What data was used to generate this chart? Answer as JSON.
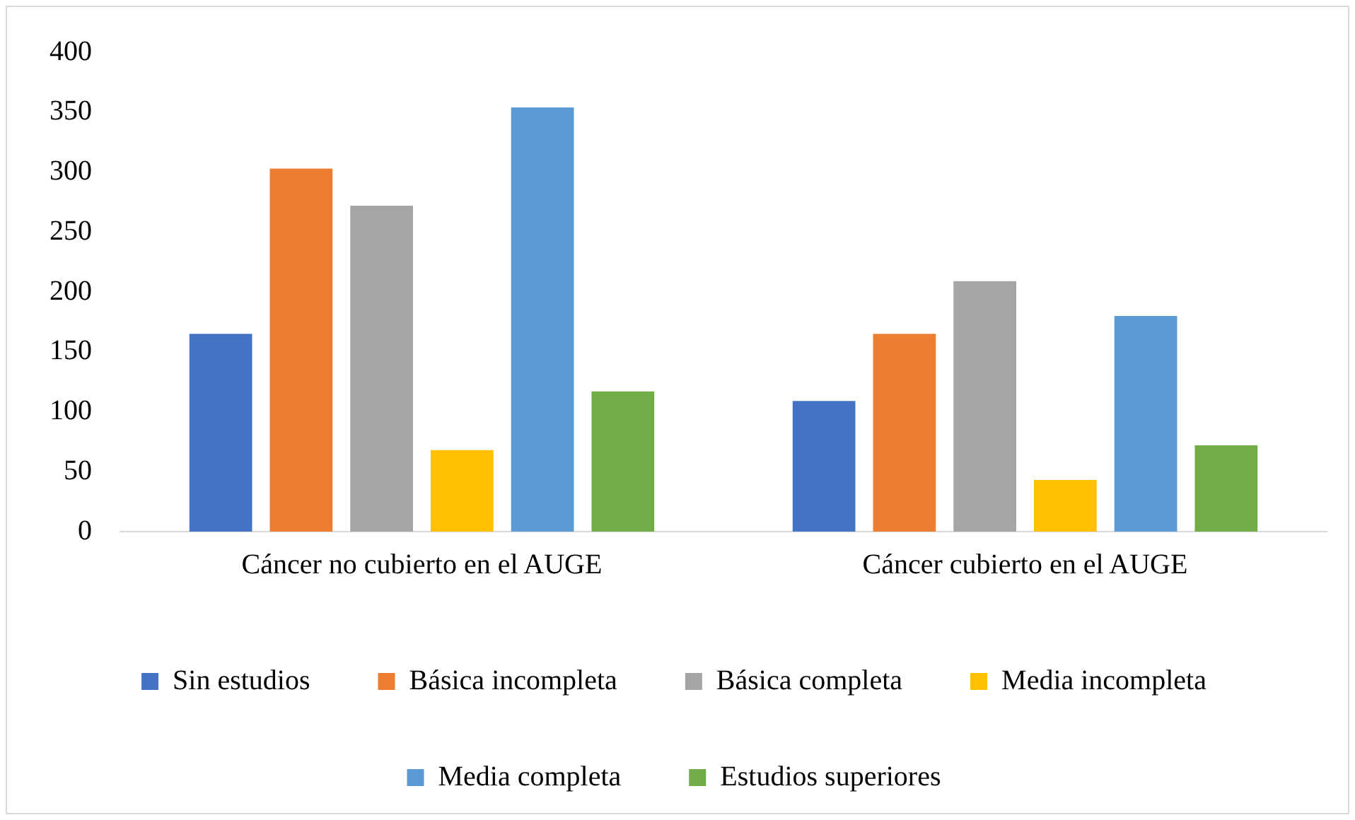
{
  "chart_data": {
    "type": "bar",
    "categories": [
      "Cáncer no cubierto en el AUGE",
      "Cáncer cubierto en el AUGE"
    ],
    "series": [
      {
        "name": "Sin estudios",
        "color": "#4472c4",
        "values": [
          165,
          109
        ]
      },
      {
        "name": "Básica incompleta",
        "color": "#ed7d31",
        "values": [
          303,
          165
        ]
      },
      {
        "name": "Básica completa",
        "color": "#a5a5a5",
        "values": [
          272,
          209
        ]
      },
      {
        "name": "Media incompleta",
        "color": "#ffc000",
        "values": [
          68,
          43
        ]
      },
      {
        "name": "Media completa",
        "color": "#5b9bd5",
        "values": [
          354,
          180
        ]
      },
      {
        "name": "Estudios superiores",
        "color": "#70ad47",
        "values": [
          117,
          72
        ]
      }
    ],
    "ylim": [
      0,
      400
    ],
    "yticks": [
      0,
      50,
      100,
      150,
      200,
      250,
      300,
      350,
      400
    ],
    "grid": false,
    "legend": "bottom"
  }
}
